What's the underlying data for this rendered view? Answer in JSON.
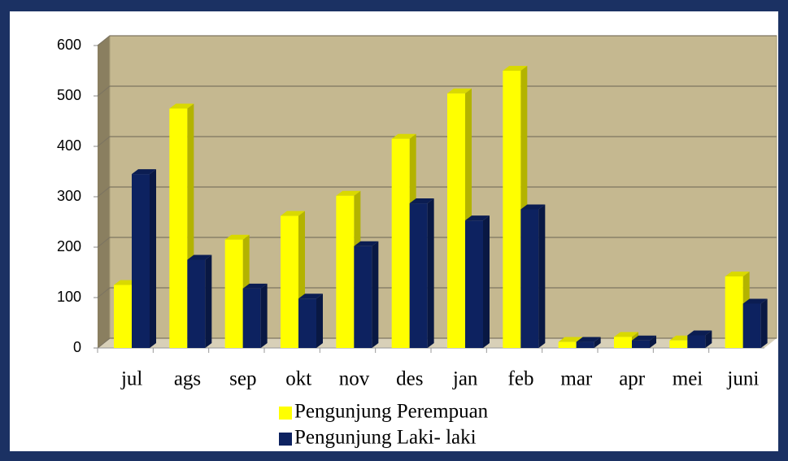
{
  "chart_data": {
    "type": "bar3d",
    "categories": [
      "jul",
      "ags",
      "sep",
      "okt",
      "nov",
      "des",
      "jan",
      "feb",
      "mar",
      "apr",
      "mei",
      "juni"
    ],
    "series": [
      {
        "name": "Pengunjung Perempuan",
        "color": "#ffff00",
        "values": [
          125,
          475,
          215,
          262,
          302,
          415,
          505,
          550,
          12,
          22,
          15,
          142
        ]
      },
      {
        "name": "Pengunjung Laki- laki",
        "color": "#0d2260",
        "values": [
          345,
          175,
          118,
          98,
          202,
          287,
          253,
          275,
          12,
          15,
          25,
          88
        ]
      }
    ],
    "ylim": [
      0,
      600
    ],
    "yticks": [
      0,
      100,
      200,
      300,
      400,
      500,
      600
    ],
    "grid": true,
    "legend": "bottom"
  }
}
